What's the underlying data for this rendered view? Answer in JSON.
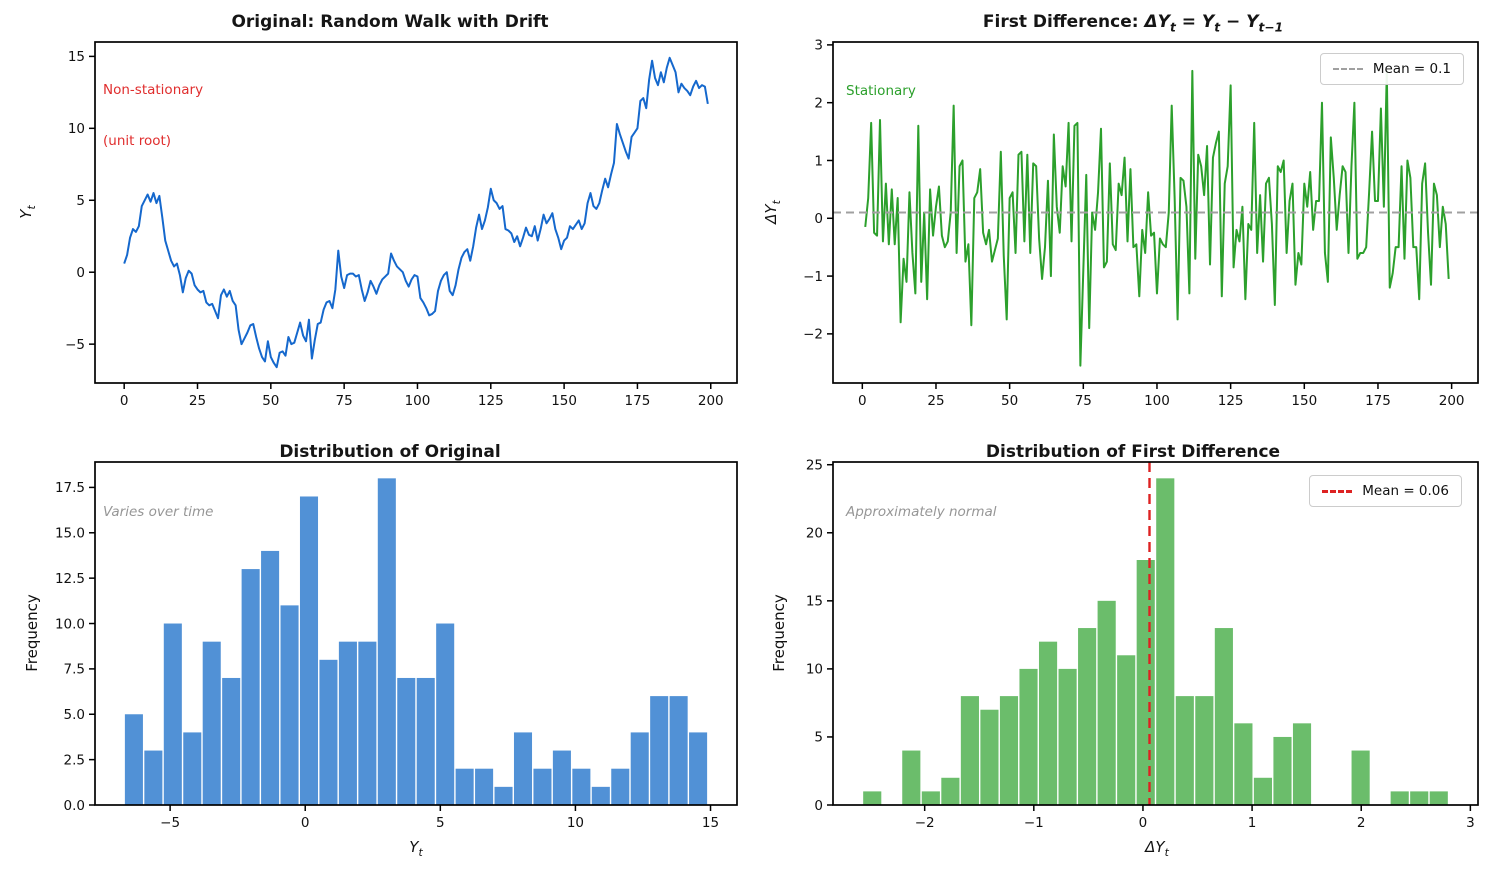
{
  "figure": {
    "background": "#ffffff"
  },
  "chart_data": [
    {
      "id": "original-series",
      "type": "line",
      "title": "Original: Random Walk with Drift",
      "xlabel": "",
      "ylabel": "Y_t",
      "annotation": {
        "lines": [
          "Non-stationary",
          "(unit root)"
        ],
        "color": "#e02e2e",
        "italic": false
      },
      "line_color": "#1568cd",
      "x_start": 0,
      "xlim": [
        -9.95,
        208.95
      ],
      "ylim": [
        -7.7,
        16.0
      ],
      "xticks": [
        0,
        25,
        50,
        75,
        100,
        125,
        150,
        175,
        200
      ],
      "xtick_labels": [
        "0",
        "25",
        "50",
        "75",
        "100",
        "125",
        "150",
        "175",
        "200"
      ],
      "yticks": [
        -5,
        0,
        5,
        10,
        15
      ],
      "ytick_labels": [
        "−5",
        "0",
        "5",
        "10",
        "15"
      ],
      "grid": false,
      "values": [
        0.6,
        1.2,
        2.4,
        3.0,
        2.8,
        3.2,
        4.6,
        5.0,
        5.4,
        4.9,
        5.5,
        4.8,
        5.3,
        3.8,
        2.2,
        1.5,
        0.8,
        0.4,
        0.6,
        -0.2,
        -1.4,
        -0.4,
        0.1,
        -0.1,
        -0.9,
        -1.2,
        -1.4,
        -1.3,
        -2.1,
        -2.3,
        -2.2,
        -2.7,
        -3.2,
        -1.6,
        -1.2,
        -1.7,
        -1.3,
        -2.0,
        -2.3,
        -4.0,
        -5.0,
        -4.6,
        -4.2,
        -3.7,
        -3.6,
        -4.5,
        -5.3,
        -5.9,
        -6.2,
        -4.8,
        -5.9,
        -6.3,
        -6.6,
        -5.6,
        -5.5,
        -5.8,
        -4.5,
        -5.0,
        -4.9,
        -4.2,
        -3.5,
        -4.4,
        -4.8,
        -3.3,
        -6.0,
        -4.7,
        -3.6,
        -3.5,
        -2.6,
        -2.1,
        -2.0,
        -2.5,
        -1.2,
        1.5,
        -0.3,
        -1.1,
        -0.2,
        -0.1,
        -0.1,
        -0.3,
        -0.2,
        -1.2,
        -2.0,
        -1.4,
        -0.6,
        -1.0,
        -1.5,
        -0.9,
        -0.5,
        -0.3,
        -0.1,
        1.3,
        0.8,
        0.4,
        0.2,
        0.0,
        -0.6,
        -1.0,
        -0.5,
        -0.2,
        -0.3,
        -1.8,
        -2.1,
        -2.5,
        -3.0,
        -2.9,
        -2.7,
        -1.3,
        -0.6,
        -0.2,
        0.0,
        -1.3,
        -1.6,
        -0.9,
        0.2,
        1.0,
        1.4,
        1.6,
        0.8,
        1.8,
        3.1,
        4.0,
        3.0,
        3.6,
        4.5,
        5.8,
        5.0,
        4.8,
        4.4,
        4.6,
        3.0,
        2.9,
        2.7,
        2.1,
        2.5,
        1.8,
        2.4,
        3.1,
        2.6,
        2.5,
        3.2,
        2.2,
        3.0,
        4.0,
        3.4,
        3.7,
        4.1,
        3.0,
        2.4,
        1.6,
        2.2,
        2.4,
        3.2,
        3.0,
        3.3,
        3.6,
        3.0,
        3.4,
        4.8,
        5.5,
        4.6,
        4.4,
        4.8,
        5.7,
        6.5,
        5.9,
        6.8,
        7.6,
        10.3,
        9.6,
        9.0,
        8.4,
        7.9,
        9.4,
        9.7,
        10.0,
        11.9,
        12.1,
        11.4,
        13.4,
        14.7,
        13.5,
        13.0,
        13.9,
        13.2,
        14.2,
        14.9,
        14.4,
        13.9,
        12.5,
        13.1,
        12.8,
        12.6,
        12.3,
        12.9,
        13.3,
        12.8,
        13.0,
        12.9,
        11.7
      ]
    },
    {
      "id": "first-difference-series",
      "type": "line",
      "title_prefix": "First Difference: ",
      "title_math": "ΔY_t = Y_t − Y_{t−1}",
      "xlabel": "",
      "ylabel": "ΔY_t",
      "annotation": {
        "lines": [
          "Stationary"
        ],
        "color": "#2ca02c",
        "italic": false
      },
      "line_color": "#2ca02c",
      "mean_line": {
        "value": 0.1,
        "orientation": "horizontal",
        "color": "#a0a0a0",
        "label": "Mean = 0.1"
      },
      "legend_position": "upper right",
      "x_start": 1,
      "xlim": [
        -9.95,
        208.95
      ],
      "ylim": [
        -2.85,
        3.05
      ],
      "xticks": [
        0,
        25,
        50,
        75,
        100,
        125,
        150,
        175,
        200
      ],
      "xtick_labels": [
        "0",
        "25",
        "50",
        "75",
        "100",
        "125",
        "150",
        "175",
        "200"
      ],
      "yticks": [
        -2,
        -1,
        0,
        1,
        2,
        3
      ],
      "ytick_labels": [
        "−2",
        "−1",
        "0",
        "1",
        "2",
        "3"
      ],
      "grid": false,
      "values": [
        -0.15,
        0.35,
        1.65,
        -0.25,
        -0.3,
        1.7,
        -0.4,
        0.6,
        -0.45,
        0.5,
        -0.45,
        0.35,
        -1.8,
        -0.7,
        -1.1,
        0.45,
        -0.6,
        -1.3,
        1.6,
        -1.1,
        0.1,
        -1.4,
        0.5,
        -0.3,
        0.2,
        0.55,
        -0.3,
        -0.5,
        -0.4,
        0.1,
        1.95,
        -0.6,
        0.9,
        1.0,
        -0.75,
        -0.45,
        -1.85,
        0.35,
        0.45,
        0.85,
        -0.25,
        -0.45,
        -0.2,
        -0.75,
        -0.55,
        -0.35,
        1.15,
        -0.65,
        -1.75,
        0.35,
        0.45,
        -0.6,
        1.1,
        1.15,
        -0.4,
        1.1,
        -0.6,
        0.95,
        0.9,
        -0.35,
        -1.05,
        -0.5,
        0.65,
        -1.0,
        1.45,
        0.2,
        -0.25,
        0.9,
        0.55,
        1.65,
        -0.4,
        1.6,
        1.65,
        -2.55,
        -0.9,
        0.75,
        -1.9,
        0.1,
        -0.2,
        0.45,
        1.55,
        -0.85,
        -0.75,
        0.95,
        -0.45,
        -0.55,
        0.6,
        0.4,
        1.05,
        -0.4,
        0.85,
        -0.5,
        -0.45,
        -1.35,
        -0.2,
        -0.6,
        0.45,
        -0.3,
        -0.25,
        -1.3,
        -0.35,
        -0.45,
        -0.5,
        0.1,
        1.95,
        0.35,
        -1.75,
        0.7,
        0.65,
        0.2,
        -1.3,
        2.55,
        -0.7,
        1.1,
        0.9,
        0.4,
        1.25,
        -0.8,
        1.05,
        1.3,
        1.5,
        -1.35,
        0.6,
        0.9,
        2.3,
        -0.85,
        -0.2,
        -0.4,
        0.2,
        -1.4,
        -0.1,
        -0.2,
        1.65,
        -0.6,
        0.4,
        -0.75,
        0.6,
        0.7,
        -0.1,
        -1.5,
        0.9,
        0.8,
        1.0,
        -0.6,
        0.3,
        0.6,
        -1.15,
        -0.6,
        -0.8,
        0.6,
        0.2,
        0.8,
        -0.2,
        0.3,
        0.3,
        2.0,
        -0.6,
        -1.1,
        1.4,
        0.7,
        -0.2,
        0.4,
        0.9,
        0.8,
        -0.6,
        0.9,
        2.0,
        -0.7,
        -0.6,
        -0.6,
        -0.5,
        0.45,
        1.5,
        0.3,
        0.3,
        1.9,
        0.2,
        2.55,
        -1.2,
        -0.95,
        -0.5,
        -0.5,
        0.9,
        -0.7,
        1.0,
        0.7,
        -0.5,
        -0.5,
        -1.4,
        0.6,
        0.95,
        -0.25,
        -1.15,
        0.6,
        0.4,
        -0.5,
        0.2,
        -0.1,
        -1.05
      ]
    },
    {
      "id": "distribution-original",
      "type": "bar",
      "title": "Distribution of Original",
      "xlabel": "Y_t",
      "ylabel": "Frequency",
      "annotation": {
        "lines": [
          "Varies over time"
        ],
        "color": "#969696",
        "italic": true
      },
      "bar_color": "#5191d6",
      "bin_start": -6.7,
      "bin_width": 0.72,
      "frequencies": [
        5,
        3,
        10,
        4,
        9,
        7,
        13,
        14,
        11,
        17,
        8,
        9,
        9,
        18,
        7,
        7,
        10,
        2,
        2,
        1,
        4,
        2,
        3,
        2,
        1,
        2,
        4,
        6,
        6,
        4
      ],
      "xlim": [
        -7.78,
        15.98
      ],
      "ylim": [
        0,
        18.9
      ],
      "xticks": [
        -5,
        0,
        5,
        10,
        15
      ],
      "xtick_labels": [
        "−5",
        "0",
        "5",
        "10",
        "15"
      ],
      "yticks": [
        0,
        2.5,
        5,
        7.5,
        10,
        12.5,
        15,
        17.5
      ],
      "ytick_labels": [
        "0.0",
        "2.5",
        "5.0",
        "7.5",
        "10.0",
        "12.5",
        "15.0",
        "17.5"
      ],
      "grid": false
    },
    {
      "id": "distribution-first-difference",
      "type": "bar",
      "title": "Distribution of First Difference",
      "xlabel": "ΔY_t",
      "ylabel": "Frequency",
      "annotation": {
        "lines": [
          "Approximately normal"
        ],
        "color": "#969696",
        "italic": true
      },
      "bar_color": "#6bbd6b",
      "mean_line": {
        "value": 0.06,
        "orientation": "vertical",
        "color": "#dd2222",
        "label": "Mean = 0.06"
      },
      "legend_position": "upper right",
      "bin_start": -2.57,
      "bin_width": 0.179,
      "frequencies": [
        1,
        0,
        4,
        1,
        2,
        8,
        7,
        8,
        10,
        12,
        10,
        13,
        15,
        11,
        18,
        24,
        8,
        8,
        13,
        6,
        2,
        5,
        6,
        0,
        0,
        4,
        0,
        1,
        1,
        1
      ],
      "xlim": [
        -2.84,
        3.07
      ],
      "ylim": [
        0,
        25.2
      ],
      "xticks": [
        -2,
        -1,
        0,
        1,
        2,
        3
      ],
      "xtick_labels": [
        "−2",
        "−1",
        "0",
        "1",
        "2",
        "3"
      ],
      "yticks": [
        0,
        5,
        10,
        15,
        20,
        25
      ],
      "ytick_labels": [
        "0",
        "5",
        "10",
        "15",
        "20",
        "25"
      ],
      "grid": false
    }
  ]
}
